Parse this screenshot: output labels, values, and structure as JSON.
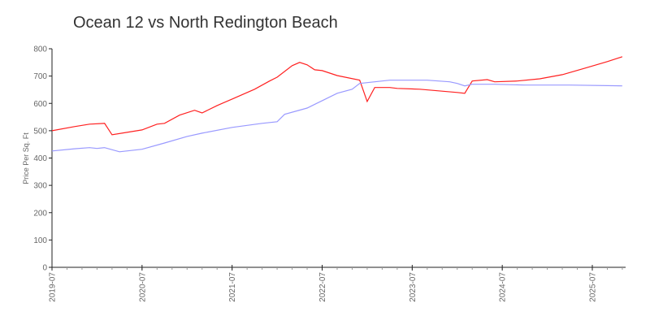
{
  "chart_data": {
    "type": "line",
    "title": "Ocean 12 vs North Redington Beach",
    "xlabel": "",
    "ylabel": "Price Per Sq. Ft",
    "ylim": [
      0,
      800
    ],
    "yticks": [
      0,
      100,
      200,
      300,
      400,
      500,
      600,
      700,
      800
    ],
    "xlim": [
      "2019-07",
      "2025-11"
    ],
    "xticks": [
      "2019-07",
      "2020-07",
      "2021-07",
      "2022-07",
      "2023-07",
      "2024-07",
      "2025-07"
    ],
    "grid": false,
    "legend": "none",
    "series": [
      {
        "name": "Ocean 12",
        "color": "#ff2020",
        "points": [
          [
            "2019-07",
            500
          ],
          [
            "2019-10",
            515
          ],
          [
            "2019-12",
            524
          ],
          [
            "2020-02",
            527
          ],
          [
            "2020-03",
            485
          ],
          [
            "2020-07",
            503
          ],
          [
            "2020-09",
            524
          ],
          [
            "2020-10",
            527
          ],
          [
            "2020-12",
            557
          ],
          [
            "2021-02",
            575
          ],
          [
            "2021-03",
            565
          ],
          [
            "2021-05",
            592
          ],
          [
            "2021-07",
            616
          ],
          [
            "2021-10",
            652
          ],
          [
            "2021-12",
            682
          ],
          [
            "2022-01",
            696
          ],
          [
            "2022-03",
            738
          ],
          [
            "2022-04",
            750
          ],
          [
            "2022-05",
            741
          ],
          [
            "2022-06",
            723
          ],
          [
            "2022-07",
            720
          ],
          [
            "2022-09",
            702
          ],
          [
            "2022-12",
            685
          ],
          [
            "2023-01",
            607
          ],
          [
            "2023-02",
            658
          ],
          [
            "2023-04",
            658
          ],
          [
            "2023-05",
            655
          ],
          [
            "2023-08",
            652
          ],
          [
            "2024-01",
            640
          ],
          [
            "2024-02",
            637
          ],
          [
            "2024-03",
            682
          ],
          [
            "2024-05",
            687
          ],
          [
            "2024-06",
            679
          ],
          [
            "2024-09",
            682
          ],
          [
            "2024-12",
            690
          ],
          [
            "2025-03",
            705
          ],
          [
            "2025-06",
            729
          ],
          [
            "2025-09",
            753
          ],
          [
            "2025-11",
            771
          ]
        ]
      },
      {
        "name": "North Redington Beach",
        "color": "#9999ff",
        "points": [
          [
            "2019-07",
            426
          ],
          [
            "2019-10",
            434
          ],
          [
            "2019-12",
            438
          ],
          [
            "2020-01",
            435
          ],
          [
            "2020-02",
            438
          ],
          [
            "2020-04",
            423
          ],
          [
            "2020-07",
            432
          ],
          [
            "2020-10",
            455
          ],
          [
            "2021-01",
            479
          ],
          [
            "2021-03",
            491
          ],
          [
            "2021-07",
            512
          ],
          [
            "2021-11",
            527
          ],
          [
            "2022-01",
            533
          ],
          [
            "2022-02",
            560
          ],
          [
            "2022-05",
            583
          ],
          [
            "2022-07",
            610
          ],
          [
            "2022-09",
            637
          ],
          [
            "2022-11",
            652
          ],
          [
            "2022-12",
            673
          ],
          [
            "2023-02",
            679
          ],
          [
            "2023-04",
            685
          ],
          [
            "2023-09",
            685
          ],
          [
            "2023-12",
            679
          ],
          [
            "2024-01",
            673
          ],
          [
            "2024-02",
            664
          ],
          [
            "2024-03",
            670
          ],
          [
            "2024-06",
            670
          ],
          [
            "2024-10",
            667
          ],
          [
            "2025-04",
            667
          ],
          [
            "2025-11",
            664
          ]
        ]
      }
    ]
  }
}
